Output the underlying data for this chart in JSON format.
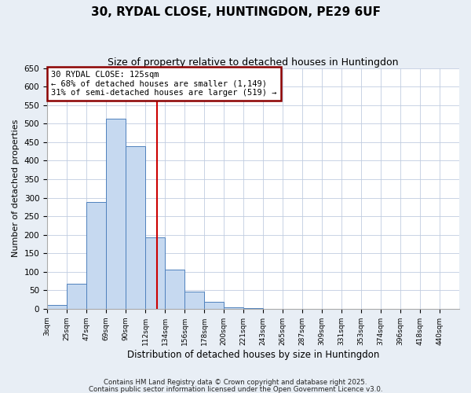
{
  "title": "30, RYDAL CLOSE, HUNTINGDON, PE29 6UF",
  "subtitle": "Size of property relative to detached houses in Huntingdon",
  "xlabel": "Distribution of detached houses by size in Huntingdon",
  "ylabel": "Number of detached properties",
  "bar_labels": [
    "3sqm",
    "25sqm",
    "47sqm",
    "69sqm",
    "90sqm",
    "112sqm",
    "134sqm",
    "156sqm",
    "178sqm",
    "200sqm",
    "221sqm",
    "243sqm",
    "265sqm",
    "287sqm",
    "309sqm",
    "331sqm",
    "353sqm",
    "374sqm",
    "396sqm",
    "418sqm",
    "440sqm"
  ],
  "bar_values": [
    10,
    67,
    288,
    513,
    440,
    192,
    106,
    46,
    19,
    4,
    1,
    0,
    0,
    0,
    0,
    0,
    0,
    0,
    0,
    0,
    0
  ],
  "bar_color": "#c6d9f0",
  "bar_edge_color": "#4f81bd",
  "ylim": [
    0,
    650
  ],
  "yticks": [
    0,
    50,
    100,
    150,
    200,
    250,
    300,
    350,
    400,
    450,
    500,
    550,
    600,
    650
  ],
  "vline_color": "#cc0000",
  "annotation_title": "30 RYDAL CLOSE: 125sqm",
  "annotation_line1": "← 68% of detached houses are smaller (1,149)",
  "annotation_line2": "31% of semi-detached houses are larger (519) →",
  "annotation_box_color": "#8b0000",
  "footnote1": "Contains HM Land Registry data © Crown copyright and database right 2025.",
  "footnote2": "Contains public sector information licensed under the Open Government Licence v3.0.",
  "bg_color": "#e8eef5",
  "plot_bg_color": "#ffffff",
  "grid_color": "#c0cce0"
}
